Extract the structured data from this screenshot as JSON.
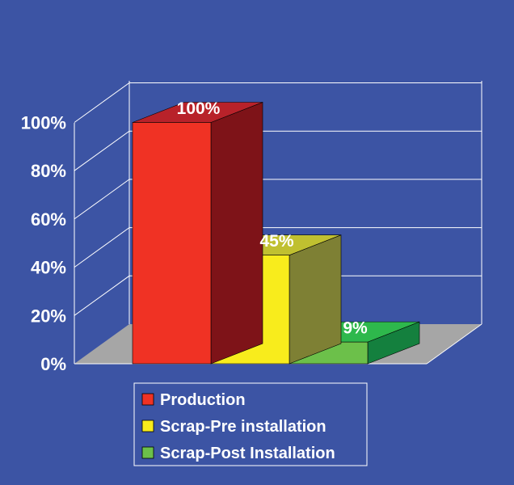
{
  "chart_data": {
    "type": "bar",
    "categories": [
      "Production",
      "Scrap-Pre installation",
      "Scrap-Post Installation"
    ],
    "values": [
      100,
      45,
      9
    ],
    "data_labels": [
      "100%",
      "45%",
      "9%"
    ],
    "ylim": [
      0,
      100
    ],
    "y_ticks": [
      0,
      20,
      40,
      60,
      80,
      100
    ],
    "y_tick_labels": [
      "0%",
      "20%",
      "40%",
      "60%",
      "80%",
      "100%"
    ],
    "grid": true,
    "legend_placement": "bottom-center",
    "colors": {
      "background": "#3c54a4",
      "floor": "#a6a6a6",
      "series": [
        {
          "front": "#f03224",
          "top": "#b8222a",
          "side": "#7e1318"
        },
        {
          "front": "#f8ec1c",
          "top": "#c0c030",
          "side": "#7e8034"
        },
        {
          "front": "#6cc04a",
          "top": "#2eb84c",
          "side": "#14803e"
        }
      ]
    }
  }
}
